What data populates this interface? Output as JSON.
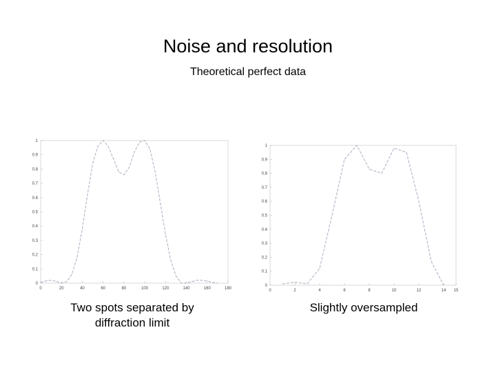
{
  "slide": {
    "title": "Noise and resolution",
    "subtitle": "Theoretical perfect data",
    "captions": [
      "Two spots separated by diffraction limit",
      "Slightly oversampled"
    ]
  },
  "chart_data": [
    {
      "type": "line",
      "xlim": [
        0,
        180
      ],
      "ylim": [
        0,
        1
      ],
      "x_ticks": [
        0,
        20,
        40,
        60,
        80,
        100,
        120,
        140,
        160,
        180
      ],
      "y_ticks": [
        0,
        0.1,
        0.2,
        0.3,
        0.4,
        0.5,
        0.6,
        0.7,
        0.8,
        0.9,
        1
      ],
      "grid": false,
      "line_color": "#b8b8c8",
      "x": [
        0,
        5,
        10,
        15,
        20,
        25,
        30,
        35,
        40,
        45,
        50,
        55,
        60,
        65,
        70,
        75,
        80,
        85,
        90,
        95,
        100,
        105,
        110,
        115,
        120,
        125,
        130,
        135,
        140,
        145,
        150,
        155,
        160,
        165,
        170
      ],
      "y": [
        0.005,
        0.015,
        0.02,
        0.012,
        0.0,
        0.01,
        0.06,
        0.18,
        0.38,
        0.62,
        0.84,
        0.96,
        1.0,
        0.96,
        0.87,
        0.78,
        0.76,
        0.81,
        0.92,
        0.99,
        1.0,
        0.94,
        0.78,
        0.56,
        0.34,
        0.16,
        0.05,
        0.0,
        0.0,
        0.01,
        0.02,
        0.02,
        0.015,
        0.005,
        0.0
      ]
    },
    {
      "type": "line",
      "xlim": [
        0,
        15
      ],
      "ylim": [
        0,
        1
      ],
      "x_ticks": [
        0,
        2,
        4,
        6,
        8,
        10,
        12,
        14,
        15
      ],
      "y_ticks": [
        0,
        0.1,
        0.2,
        0.3,
        0.4,
        0.5,
        0.6,
        0.7,
        0.8,
        0.9,
        1
      ],
      "grid": false,
      "line_color": "#b8b8c8",
      "x": [
        1,
        2,
        3,
        4,
        5,
        6,
        7,
        8,
        9,
        10,
        11,
        12,
        13,
        14
      ],
      "y": [
        0.01,
        0.02,
        0.01,
        0.12,
        0.5,
        0.9,
        1.0,
        0.83,
        0.8,
        0.98,
        0.95,
        0.6,
        0.17,
        0.0
      ]
    }
  ]
}
